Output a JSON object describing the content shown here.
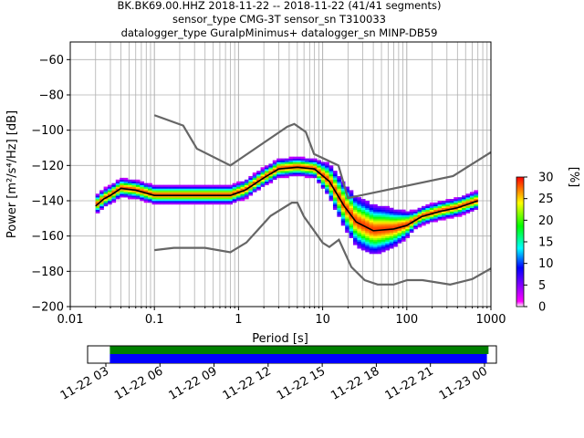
{
  "chart_data": [
    {
      "type": "heatmap",
      "title_lines": [
        "BK.BK69.00.HHZ   2018-11-22 -- 2018-11-22  (41/41 segments)",
        "sensor_type CMG-3T sensor_sn T310033",
        "datalogger_type GuralpMinimus+ datalogger_sn MINP-DB59"
      ],
      "xlabel": "Period [s]",
      "ylabel": "Power [m²/s⁴/Hz] [dB]",
      "x_scale": "log",
      "xlim": [
        0.01,
        1000
      ],
      "ylim": [
        -200,
        -50
      ],
      "x_ticks": [
        0.01,
        0.1,
        1,
        10,
        100,
        1000
      ],
      "x_tick_labels": [
        "0.01",
        "0.1",
        "1",
        "10",
        "100",
        "1000"
      ],
      "y_ticks": [
        -200,
        -180,
        -160,
        -140,
        -120,
        -100,
        -80,
        -60
      ],
      "y_tick_labels": [
        "−200",
        "−180",
        "−160",
        "−140",
        "−120",
        "−100",
        "−80",
        "−60"
      ],
      "grid": true,
      "colorbar": {
        "label": "[%]",
        "range": [
          0,
          30
        ],
        "ticks": [
          0,
          5,
          10,
          15,
          20,
          25,
          30
        ],
        "tick_labels": [
          "0",
          "5",
          "10",
          "15",
          "20",
          "25",
          "30"
        ],
        "colors": [
          "#ffffff",
          "#ff00ff",
          "#0000ff",
          "#00ffff",
          "#00ff00",
          "#ffff00",
          "#ff8000",
          "#ff0000"
        ]
      },
      "mode_curve": {
        "period": [
          0.02,
          0.025,
          0.03,
          0.04,
          0.06,
          0.1,
          0.2,
          0.4,
          0.8,
          1.2,
          2,
          3,
          5,
          8,
          12,
          18,
          25,
          40,
          70,
          100,
          150,
          250,
          400,
          700
        ],
        "power": [
          -143,
          -139,
          -137,
          -133,
          -134,
          -137,
          -137,
          -137,
          -137,
          -134,
          -127,
          -122,
          -121,
          -122,
          -129,
          -143,
          -152,
          -157,
          -156,
          -154,
          -149,
          -146,
          -144,
          -140
        ]
      },
      "noise_models": [
        {
          "name": "NHNM",
          "period": [
            0.1,
            0.22,
            0.32,
            0.8,
            3.8,
            4.6,
            6.3,
            7.9,
            15.4,
            20,
            354.8,
            1000
          ],
          "power": [
            -91.5,
            -97.4,
            -110.5,
            -120,
            -98,
            -96.5,
            -101,
            -113.5,
            -120,
            -138.5,
            -126,
            -112.5
          ]
        },
        {
          "name": "NLNM",
          "period": [
            0.1,
            0.17,
            0.4,
            0.8,
            1.24,
            2.4,
            4.3,
            5,
            6,
            10,
            12,
            15.6,
            21.9,
            31.6,
            45,
            70,
            101,
            154,
            328,
            600,
            1000
          ],
          "power": [
            -168,
            -166.7,
            -166.7,
            -169.2,
            -163.7,
            -148.6,
            -141.1,
            -141.1,
            -149,
            -163.8,
            -166.2,
            -162.1,
            -177.5,
            -185,
            -187.5,
            -187.5,
            -185,
            -185,
            -187.5,
            -184.4,
            -178.4
          ]
        }
      ]
    },
    {
      "type": "bar",
      "x_tick_labels": [
        "11-22 03",
        "11-22 06",
        "11-22 09",
        "11-22 12",
        "11-22 15",
        "11-22 18",
        "11-22 21",
        "11-23 00"
      ],
      "x_range_hours": [
        0.0,
        24.0
      ],
      "series": [
        {
          "color": "#008000",
          "start_hour": 0.25,
          "end_hour": 23.85
        },
        {
          "color": "#0000ff",
          "start_hour": 0.25,
          "end_hour": 23.75
        }
      ]
    }
  ]
}
